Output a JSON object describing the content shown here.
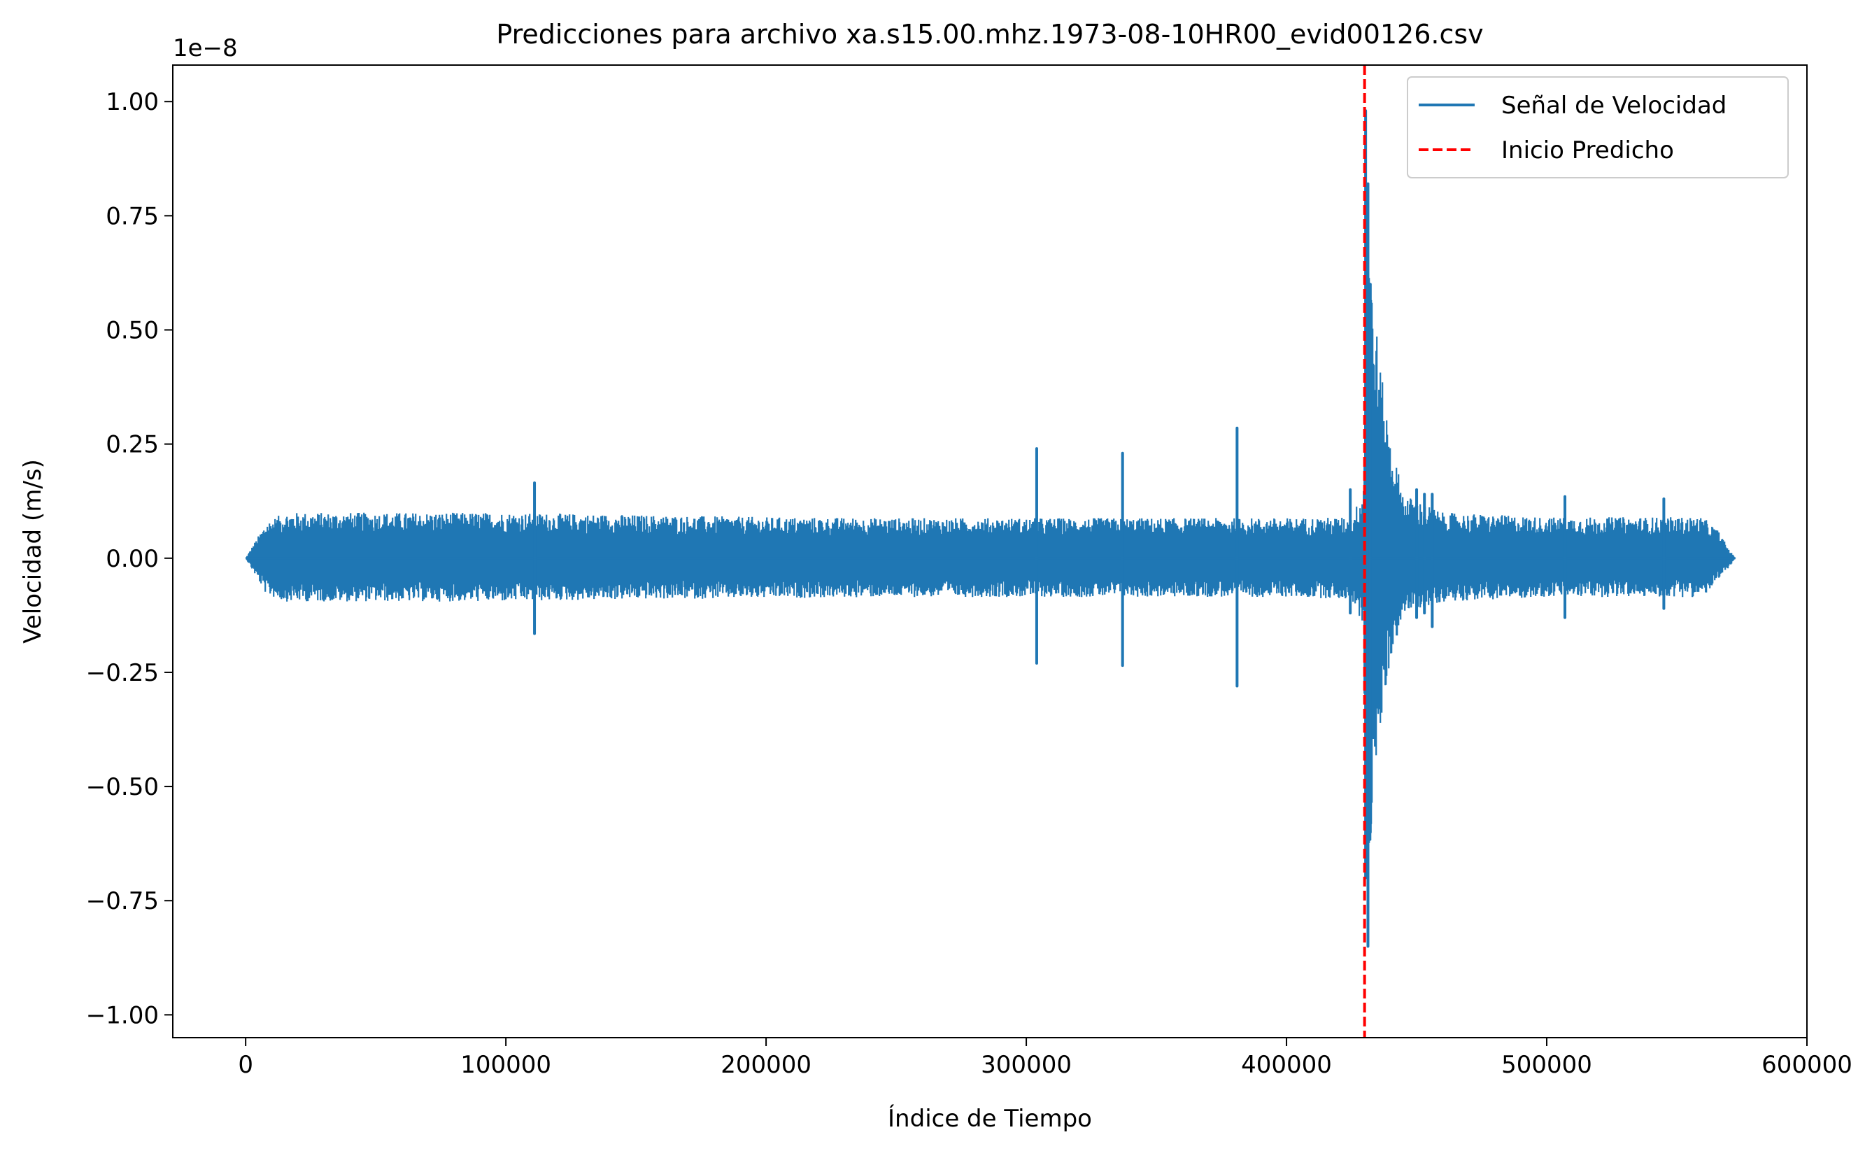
{
  "chart_data": {
    "type": "line",
    "title": "Predicciones para archivo xa.s15.00.mhz.1973-08-10HR00_evid00126.csv",
    "xlabel": "Índice de Tiempo",
    "ylabel": "Velocidad (m/s)",
    "y_offset_label": "1e−8",
    "xlim": [
      -28000,
      600000
    ],
    "ylim": [
      -1.05,
      1.08
    ],
    "x_ticks": [
      0,
      100000,
      200000,
      300000,
      400000,
      500000,
      600000
    ],
    "x_tick_labels": [
      "0",
      "100000",
      "200000",
      "300000",
      "400000",
      "500000",
      "600000"
    ],
    "y_ticks": [
      1.0,
      0.75,
      0.5,
      0.25,
      0.0,
      -0.25,
      -0.5,
      -0.75,
      -1.0
    ],
    "y_tick_labels": [
      "1.00",
      "0.75",
      "0.50",
      "0.25",
      "0.00",
      "−0.25",
      "−0.50",
      "−0.75",
      "−1.00"
    ],
    "grid": false,
    "legend_position": "top-right",
    "series": [
      {
        "name": "Señal de Velocidad",
        "color": "#1f77b4",
        "style": "solid",
        "envelope_x": [
          0,
          3000,
          8000,
          15000,
          50000,
          100000,
          150000,
          200000,
          250000,
          300000,
          350000,
          400000,
          425000,
          429500,
          431000,
          433000,
          436000,
          440000,
          445000,
          460000,
          500000,
          540000,
          560000,
          566000,
          570000,
          572500
        ],
        "envelope_upper": [
          0.0,
          0.03,
          0.08,
          0.1,
          0.1,
          0.1,
          0.095,
          0.09,
          0.088,
          0.088,
          0.088,
          0.088,
          0.09,
          0.15,
          0.8,
          0.6,
          0.42,
          0.26,
          0.14,
          0.1,
          0.09,
          0.09,
          0.09,
          0.06,
          0.02,
          0.0
        ],
        "envelope_lower": [
          0.0,
          -0.03,
          -0.08,
          -0.095,
          -0.095,
          -0.095,
          -0.09,
          -0.088,
          -0.085,
          -0.085,
          -0.085,
          -0.085,
          -0.09,
          -0.15,
          -0.85,
          -0.55,
          -0.38,
          -0.22,
          -0.12,
          -0.095,
          -0.085,
          -0.085,
          -0.085,
          -0.05,
          -0.02,
          0.0
        ],
        "spikes": [
          {
            "x": 111000,
            "max": 0.165,
            "min": -0.165
          },
          {
            "x": 304000,
            "max": 0.24,
            "min": -0.23
          },
          {
            "x": 337000,
            "max": 0.23,
            "min": -0.235
          },
          {
            "x": 381000,
            "max": 0.285,
            "min": -0.28
          },
          {
            "x": 424500,
            "max": 0.15,
            "min": -0.12
          },
          {
            "x": 430400,
            "max": 0.98,
            "min": -0.7
          },
          {
            "x": 431300,
            "max": 0.82,
            "min": -0.85
          },
          {
            "x": 432200,
            "max": 0.6,
            "min": -0.6
          },
          {
            "x": 450000,
            "max": 0.15,
            "min": -0.13
          },
          {
            "x": 453000,
            "max": 0.14,
            "min": -0.12
          },
          {
            "x": 456000,
            "max": 0.14,
            "min": -0.15
          },
          {
            "x": 507000,
            "max": 0.135,
            "min": -0.13
          },
          {
            "x": 545000,
            "max": 0.13,
            "min": -0.11
          }
        ]
      },
      {
        "name": "Inicio Predicho",
        "color": "#ff0000",
        "style": "dashed",
        "x": 430000
      }
    ]
  }
}
